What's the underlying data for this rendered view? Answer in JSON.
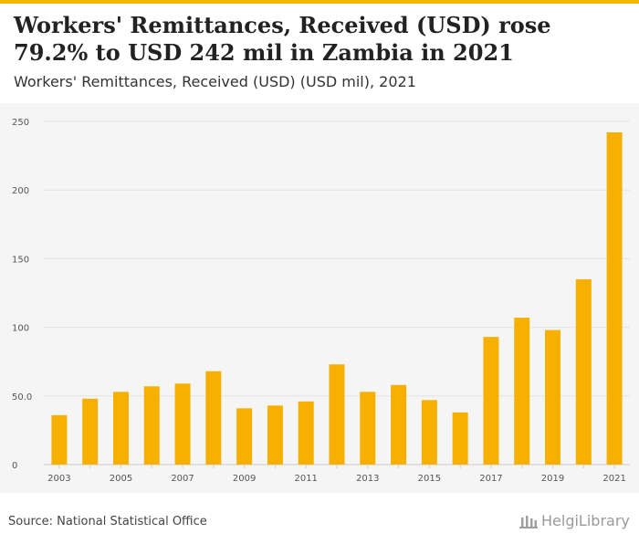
{
  "header": {
    "title": "Workers' Remittances, Received (USD) rose 79.2% to USD 242 mil in Zambia in 2021",
    "subtitle": "Workers' Remittances, Received (USD) (USD mil), 2021"
  },
  "footer": {
    "source": "Source: National Statistical Office",
    "logo_text": "HelgiLibrary"
  },
  "colors": {
    "bar": "#f7b000",
    "accent": "#f5b500",
    "grid": "#e3e3e3",
    "background": "#f5f5f5"
  },
  "chart_data": {
    "type": "bar",
    "title": "Workers' Remittances, Received (USD) (USD mil), 2021",
    "xlabel": "",
    "ylabel": "",
    "ylim": [
      0,
      250
    ],
    "yticks": [
      0,
      50,
      100,
      150,
      200,
      250
    ],
    "ytick_labels": [
      "0",
      "50.0",
      "100",
      "150",
      "200",
      "250"
    ],
    "categories": [
      "2003",
      "2004",
      "2005",
      "2006",
      "2007",
      "2008",
      "2009",
      "2010",
      "2011",
      "2012",
      "2013",
      "2014",
      "2015",
      "2016",
      "2017",
      "2018",
      "2019",
      "2020",
      "2021"
    ],
    "xtick_labels": [
      "2003",
      "",
      "2005",
      "",
      "2007",
      "",
      "2009",
      "",
      "2011",
      "",
      "2013",
      "",
      "2015",
      "",
      "2017",
      "",
      "2019",
      "",
      "2021"
    ],
    "values": [
      36,
      48,
      53,
      57,
      59,
      68,
      41,
      43,
      46,
      73,
      53,
      58,
      47,
      38,
      93,
      107,
      98,
      135,
      242
    ],
    "grid": true,
    "legend": "none"
  }
}
